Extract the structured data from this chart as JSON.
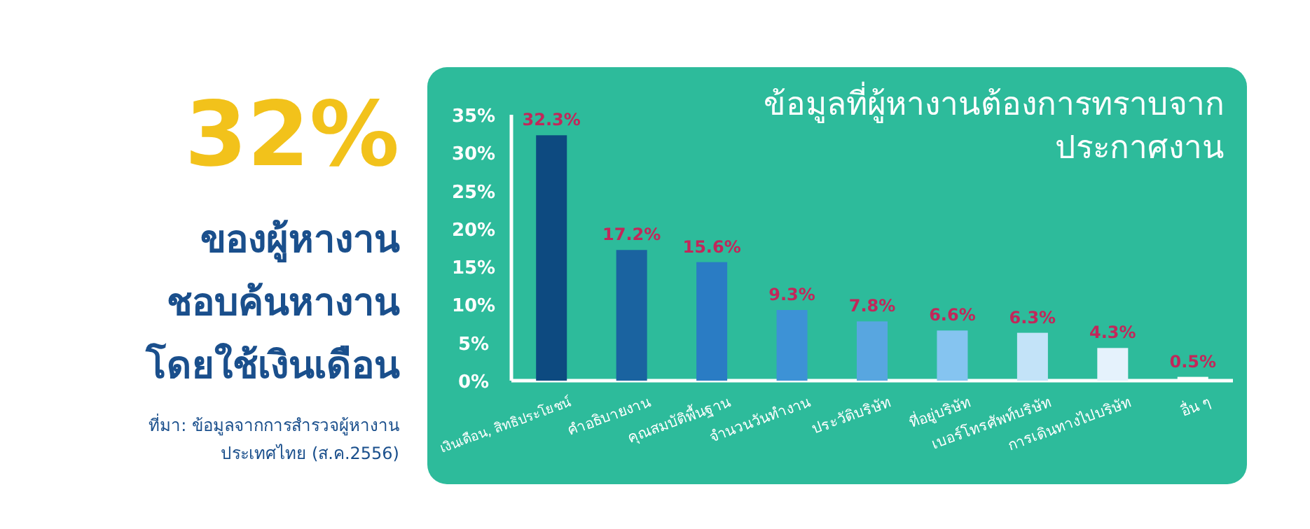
{
  "chart_data": {
    "type": "bar",
    "title": "ข้อมูลที่ผู้หางานต้องการทราบจากประกาศงาน",
    "annotations": [
      "32%",
      "ของผู้หางาน",
      "ชอบค้นหางาน",
      "โดยใช้เงินเดือน",
      "ที่มา: ข้อมูลจากการสำรวจผู้หางาน",
      "ประเทศไทย (ส.ค.2556)"
    ],
    "categories": [
      "เงินเดือน, สิทธิประโยชน์",
      "คำอธิบายงาน",
      "คุณสมบัติพื้นฐาน",
      "จำนวนวันทำงาน",
      "ประวัติบริษัท",
      "ที่อยู่บริษัท",
      "เบอร์โทรศัพท์บริษัท",
      "การเดินทางไปบริษัท",
      "อื่น ๆ"
    ],
    "values": [
      32.3,
      17.2,
      15.6,
      9.3,
      7.8,
      6.6,
      6.3,
      4.3,
      0.5
    ],
    "value_labels": [
      "32.3%",
      "17.2%",
      "15.6%",
      "9.3%",
      "7.8%",
      "6.6%",
      "6.3%",
      "4.3%",
      "0.5%"
    ],
    "colors": [
      "#0d4a80",
      "#1a63a0",
      "#2a7cc4",
      "#3d92d6",
      "#58a6e0",
      "#85c4f0",
      "#c3e3f8",
      "#e5f2fc",
      "#ffffff"
    ],
    "ylim": [
      0,
      35
    ],
    "yticks": [
      {
        "value": 0,
        "label": "0%"
      },
      {
        "value": 5,
        "label": "5%"
      },
      {
        "value": 10,
        "label": "10%"
      },
      {
        "value": 15,
        "label": "15%"
      },
      {
        "value": 20,
        "label": "20%"
      },
      {
        "value": 25,
        "label": "25%"
      },
      {
        "value": 30,
        "label": "30%"
      },
      {
        "value": 35,
        "label": "35%"
      }
    ],
    "grid": false
  }
}
